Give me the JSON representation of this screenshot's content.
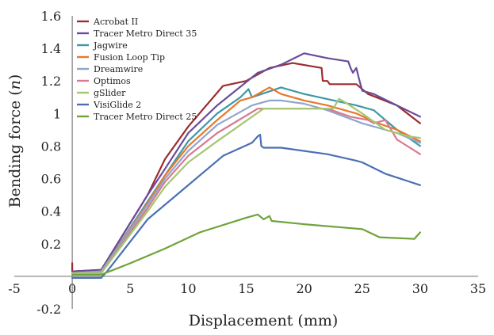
{
  "chart_data": {
    "type": "line",
    "title": "",
    "xlabel": "Displacement (mm)",
    "ylabel_text": "Bending force (",
    "ylabel_unit": "n",
    "ylabel_close": ")",
    "xlim": [
      -5,
      35
    ],
    "ylim": [
      -0.2,
      1.6
    ],
    "xticks": [
      -5,
      0,
      5,
      10,
      15,
      20,
      25,
      30,
      35
    ],
    "yticks": [
      -0.2,
      0.2,
      0.4,
      0.6,
      0.8,
      1,
      1.2,
      1.4,
      1.6
    ],
    "grid": false,
    "legend_position": "top-left",
    "series": [
      {
        "name": "Acrobat II",
        "color": "#9b2d30",
        "points": [
          [
            0,
            0.08
          ],
          [
            0,
            0.03
          ],
          [
            2.5,
            0.04
          ],
          [
            6.5,
            0.5
          ],
          [
            8,
            0.72
          ],
          [
            10,
            0.92
          ],
          [
            13,
            1.17
          ],
          [
            15,
            1.2
          ],
          [
            17,
            1.28
          ],
          [
            19,
            1.31
          ],
          [
            21.5,
            1.28
          ],
          [
            21.6,
            1.2
          ],
          [
            22,
            1.2
          ],
          [
            22.2,
            1.18
          ],
          [
            24.5,
            1.18
          ],
          [
            25.5,
            1.12
          ],
          [
            28,
            1.05
          ],
          [
            30,
            0.94
          ]
        ]
      },
      {
        "name": "Tracer Metro Direct 35",
        "color": "#6a4b9c",
        "points": [
          [
            0,
            0.03
          ],
          [
            2.5,
            0.04
          ],
          [
            6.5,
            0.5
          ],
          [
            8,
            0.66
          ],
          [
            10,
            0.88
          ],
          [
            12.5,
            1.05
          ],
          [
            16,
            1.25
          ],
          [
            18,
            1.3
          ],
          [
            20,
            1.37
          ],
          [
            22,
            1.34
          ],
          [
            23.8,
            1.32
          ],
          [
            24,
            1.28
          ],
          [
            24.2,
            1.25
          ],
          [
            24.5,
            1.28
          ],
          [
            24.7,
            1.22
          ],
          [
            25,
            1.14
          ],
          [
            26,
            1.12
          ],
          [
            28,
            1.05
          ],
          [
            30,
            0.98
          ]
        ]
      },
      {
        "name": "Jagwire",
        "color": "#3e98a8",
        "points": [
          [
            0,
            0.02
          ],
          [
            2.5,
            0.03
          ],
          [
            6.5,
            0.46
          ],
          [
            8,
            0.62
          ],
          [
            10,
            0.83
          ],
          [
            12.5,
            1.0
          ],
          [
            14.5,
            1.1
          ],
          [
            15.2,
            1.15
          ],
          [
            15.5,
            1.1
          ],
          [
            18,
            1.16
          ],
          [
            20,
            1.12
          ],
          [
            24.5,
            1.05
          ],
          [
            26,
            1.02
          ],
          [
            28,
            0.9
          ],
          [
            30,
            0.8
          ]
        ]
      },
      {
        "name": "Fusion Loop Tip",
        "color": "#e8782a",
        "points": [
          [
            0,
            0.02
          ],
          [
            2.5,
            0.03
          ],
          [
            6.5,
            0.45
          ],
          [
            8,
            0.62
          ],
          [
            10,
            0.8
          ],
          [
            12.5,
            0.96
          ],
          [
            14.5,
            1.08
          ],
          [
            15.5,
            1.1
          ],
          [
            17,
            1.16
          ],
          [
            18,
            1.12
          ],
          [
            20,
            1.08
          ],
          [
            22,
            1.05
          ],
          [
            24.5,
            1.0
          ],
          [
            26,
            0.95
          ],
          [
            28,
            0.9
          ],
          [
            30,
            0.83
          ]
        ]
      },
      {
        "name": "Dreamwire",
        "color": "#8fa6cc",
        "points": [
          [
            0,
            0.02
          ],
          [
            2.5,
            0.03
          ],
          [
            6.5,
            0.44
          ],
          [
            8,
            0.6
          ],
          [
            10,
            0.77
          ],
          [
            12.5,
            0.93
          ],
          [
            15.5,
            1.05
          ],
          [
            17,
            1.08
          ],
          [
            18,
            1.08
          ],
          [
            20,
            1.06
          ],
          [
            22,
            1.02
          ],
          [
            25,
            0.94
          ],
          [
            28,
            0.88
          ],
          [
            30,
            0.82
          ]
        ]
      },
      {
        "name": "Optimos",
        "color": "#d77a90",
        "points": [
          [
            0,
            0.02
          ],
          [
            2.5,
            0.02
          ],
          [
            6.5,
            0.42
          ],
          [
            8,
            0.58
          ],
          [
            10,
            0.74
          ],
          [
            12.5,
            0.88
          ],
          [
            16,
            1.03
          ],
          [
            22,
            1.03
          ],
          [
            24,
            0.98
          ],
          [
            25.5,
            0.96
          ],
          [
            26,
            0.94
          ],
          [
            27,
            0.96
          ],
          [
            28,
            0.84
          ],
          [
            30,
            0.75
          ]
        ]
      },
      {
        "name": "gSlider",
        "color": "#a6c770",
        "points": [
          [
            0,
            0.02
          ],
          [
            2.5,
            0.02
          ],
          [
            6.5,
            0.4
          ],
          [
            8,
            0.55
          ],
          [
            10,
            0.7
          ],
          [
            12.5,
            0.83
          ],
          [
            16.5,
            1.03
          ],
          [
            20,
            1.03
          ],
          [
            22.5,
            1.03
          ],
          [
            23,
            1.09
          ],
          [
            23.5,
            1.07
          ],
          [
            25,
            1.0
          ],
          [
            27,
            0.9
          ],
          [
            29,
            0.86
          ],
          [
            30,
            0.85
          ]
        ]
      },
      {
        "name": "VisiGlide 2",
        "color": "#4a70b3",
        "points": [
          [
            0,
            -0.01
          ],
          [
            2.5,
            -0.01
          ],
          [
            3,
            0.03
          ],
          [
            6.5,
            0.35
          ],
          [
            9,
            0.5
          ],
          [
            13,
            0.74
          ],
          [
            15.5,
            0.82
          ],
          [
            16,
            0.86
          ],
          [
            16.2,
            0.87
          ],
          [
            16.3,
            0.8
          ],
          [
            16.5,
            0.79
          ],
          [
            18,
            0.79
          ],
          [
            22,
            0.75
          ],
          [
            24.5,
            0.71
          ],
          [
            25,
            0.7
          ],
          [
            27,
            0.63
          ],
          [
            30,
            0.56
          ]
        ]
      },
      {
        "name": "Tracer Metro Direct 25",
        "color": "#6fa33a",
        "points": [
          [
            0,
            0.01
          ],
          [
            2.5,
            0.01
          ],
          [
            5,
            0.08
          ],
          [
            8,
            0.17
          ],
          [
            11,
            0.27
          ],
          [
            15,
            0.36
          ],
          [
            16,
            0.38
          ],
          [
            16.5,
            0.35
          ],
          [
            17,
            0.37
          ],
          [
            17.2,
            0.34
          ],
          [
            20,
            0.32
          ],
          [
            25,
            0.29
          ],
          [
            26.5,
            0.24
          ],
          [
            29.5,
            0.23
          ],
          [
            30,
            0.27
          ]
        ]
      }
    ]
  }
}
